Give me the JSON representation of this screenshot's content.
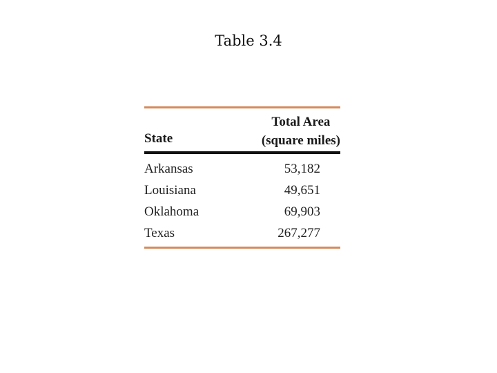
{
  "slide": {
    "title": "Table 3.4"
  },
  "table": {
    "headers": {
      "state": "State",
      "area_line1": "Total Area",
      "area_line2": "(square miles)"
    },
    "rows": [
      {
        "state": "Arkansas",
        "area": "53,182"
      },
      {
        "state": "Louisiana",
        "area": "49,651"
      },
      {
        "state": "Oklahoma",
        "area": "69,903"
      },
      {
        "state": "Texas",
        "area": "267,277"
      }
    ],
    "colors": {
      "rule_accent": "#d58a5c",
      "rule_dark": "#111111"
    }
  }
}
